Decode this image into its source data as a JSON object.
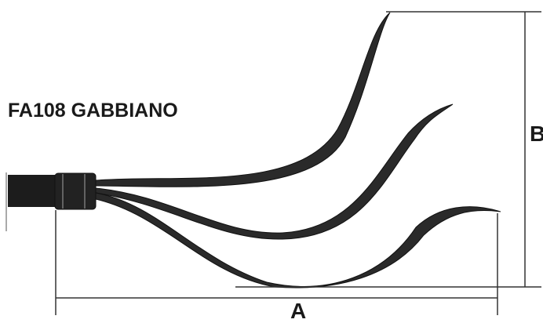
{
  "title": "FA108 GABBIANO",
  "dimensions": {
    "width_label": "A",
    "height_label": "B"
  },
  "colors": {
    "ink": "#1a1a1a",
    "line": "#333333",
    "background": "#ffffff"
  }
}
